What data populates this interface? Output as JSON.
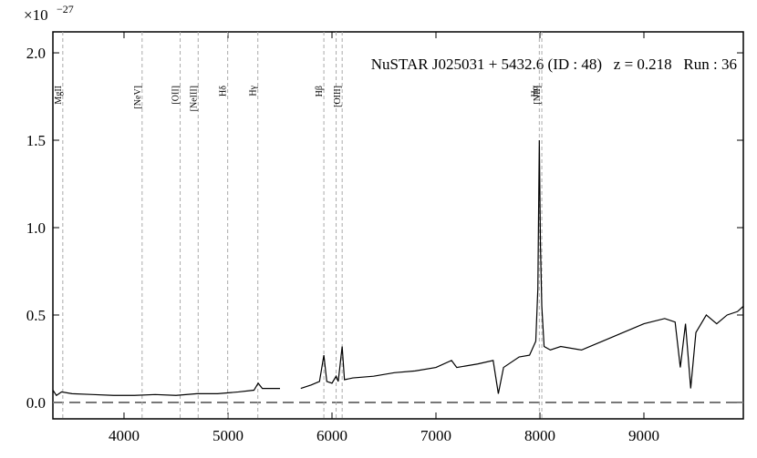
{
  "chart_data": {
    "type": "line",
    "title": "NuSTAR J025031 + 5432.6 (ID : 48)   z = 0.218   Run : 36",
    "y_multiplier": "×10",
    "y_multiplier_exponent": "−27",
    "x": [
      3316,
      3350,
      3400,
      3500,
      3700,
      3900,
      4100,
      4300,
      4500,
      4700,
      4900,
      5100,
      5250,
      5290,
      5330,
      5450,
      5500,
      5600,
      5700,
      5800,
      5880,
      5922,
      5950,
      6000,
      6040,
      6060,
      6098,
      6120,
      6200,
      6400,
      6600,
      6800,
      7000,
      7150,
      7200,
      7400,
      7550,
      7600,
      7650,
      7800,
      7900,
      7960,
      7980,
      7994,
      8005,
      8018,
      8040,
      8100,
      8200,
      8400,
      8600,
      8800,
      9000,
      9200,
      9300,
      9350,
      9400,
      9450,
      9500,
      9600,
      9700,
      9800,
      9900,
      9956
    ],
    "series": [
      {
        "color": "#000000",
        "values": [
          0.07,
          0.04,
          0.06,
          0.05,
          0.045,
          0.04,
          0.04,
          0.045,
          0.04,
          0.05,
          0.05,
          0.06,
          0.07,
          0.11,
          0.08,
          0.08,
          0.08,
          null,
          0.08,
          0.1,
          0.12,
          0.27,
          0.12,
          0.11,
          0.15,
          0.12,
          0.32,
          0.13,
          0.14,
          0.15,
          0.17,
          0.18,
          0.2,
          0.24,
          0.2,
          0.22,
          0.24,
          0.05,
          0.2,
          0.26,
          0.27,
          0.35,
          0.65,
          1.5,
          0.9,
          0.55,
          0.32,
          0.3,
          0.32,
          0.3,
          0.35,
          0.4,
          0.45,
          0.48,
          0.46,
          0.2,
          0.45,
          0.08,
          0.4,
          0.5,
          0.45,
          0.5,
          0.52,
          0.55
        ]
      }
    ],
    "lines": [
      {
        "x": 3411,
        "label": "MgII"
      },
      {
        "x": 4174,
        "label": "[NeV]"
      },
      {
        "x": 4540,
        "label": "[OII]"
      },
      {
        "x": 4713,
        "label": "[NeIII]"
      },
      {
        "x": 4997,
        "label": "Hδ"
      },
      {
        "x": 5287,
        "label": "Hγ"
      },
      {
        "x": 5922,
        "label": "Hβ"
      },
      {
        "x": 6040,
        "label": null
      },
      {
        "x": 6098,
        "label": "[OIII]"
      },
      {
        "x": 7994,
        "label": "Hα"
      },
      {
        "x": 8018,
        "label": "[NII]"
      }
    ],
    "hline": 0,
    "xlim": [
      3316,
      9956
    ],
    "ylim": [
      -0.094,
      2.12
    ],
    "xticks": [
      4000,
      5000,
      6000,
      7000,
      8000,
      9000
    ],
    "yticks": [
      {
        "value": 0,
        "label": "0.0"
      },
      {
        "value": 0.5,
        "label": "0.5"
      },
      {
        "value": 1,
        "label": "1.0"
      },
      {
        "value": 1.5,
        "label": "1.5"
      },
      {
        "value": 2,
        "label": "2.0"
      }
    ]
  }
}
